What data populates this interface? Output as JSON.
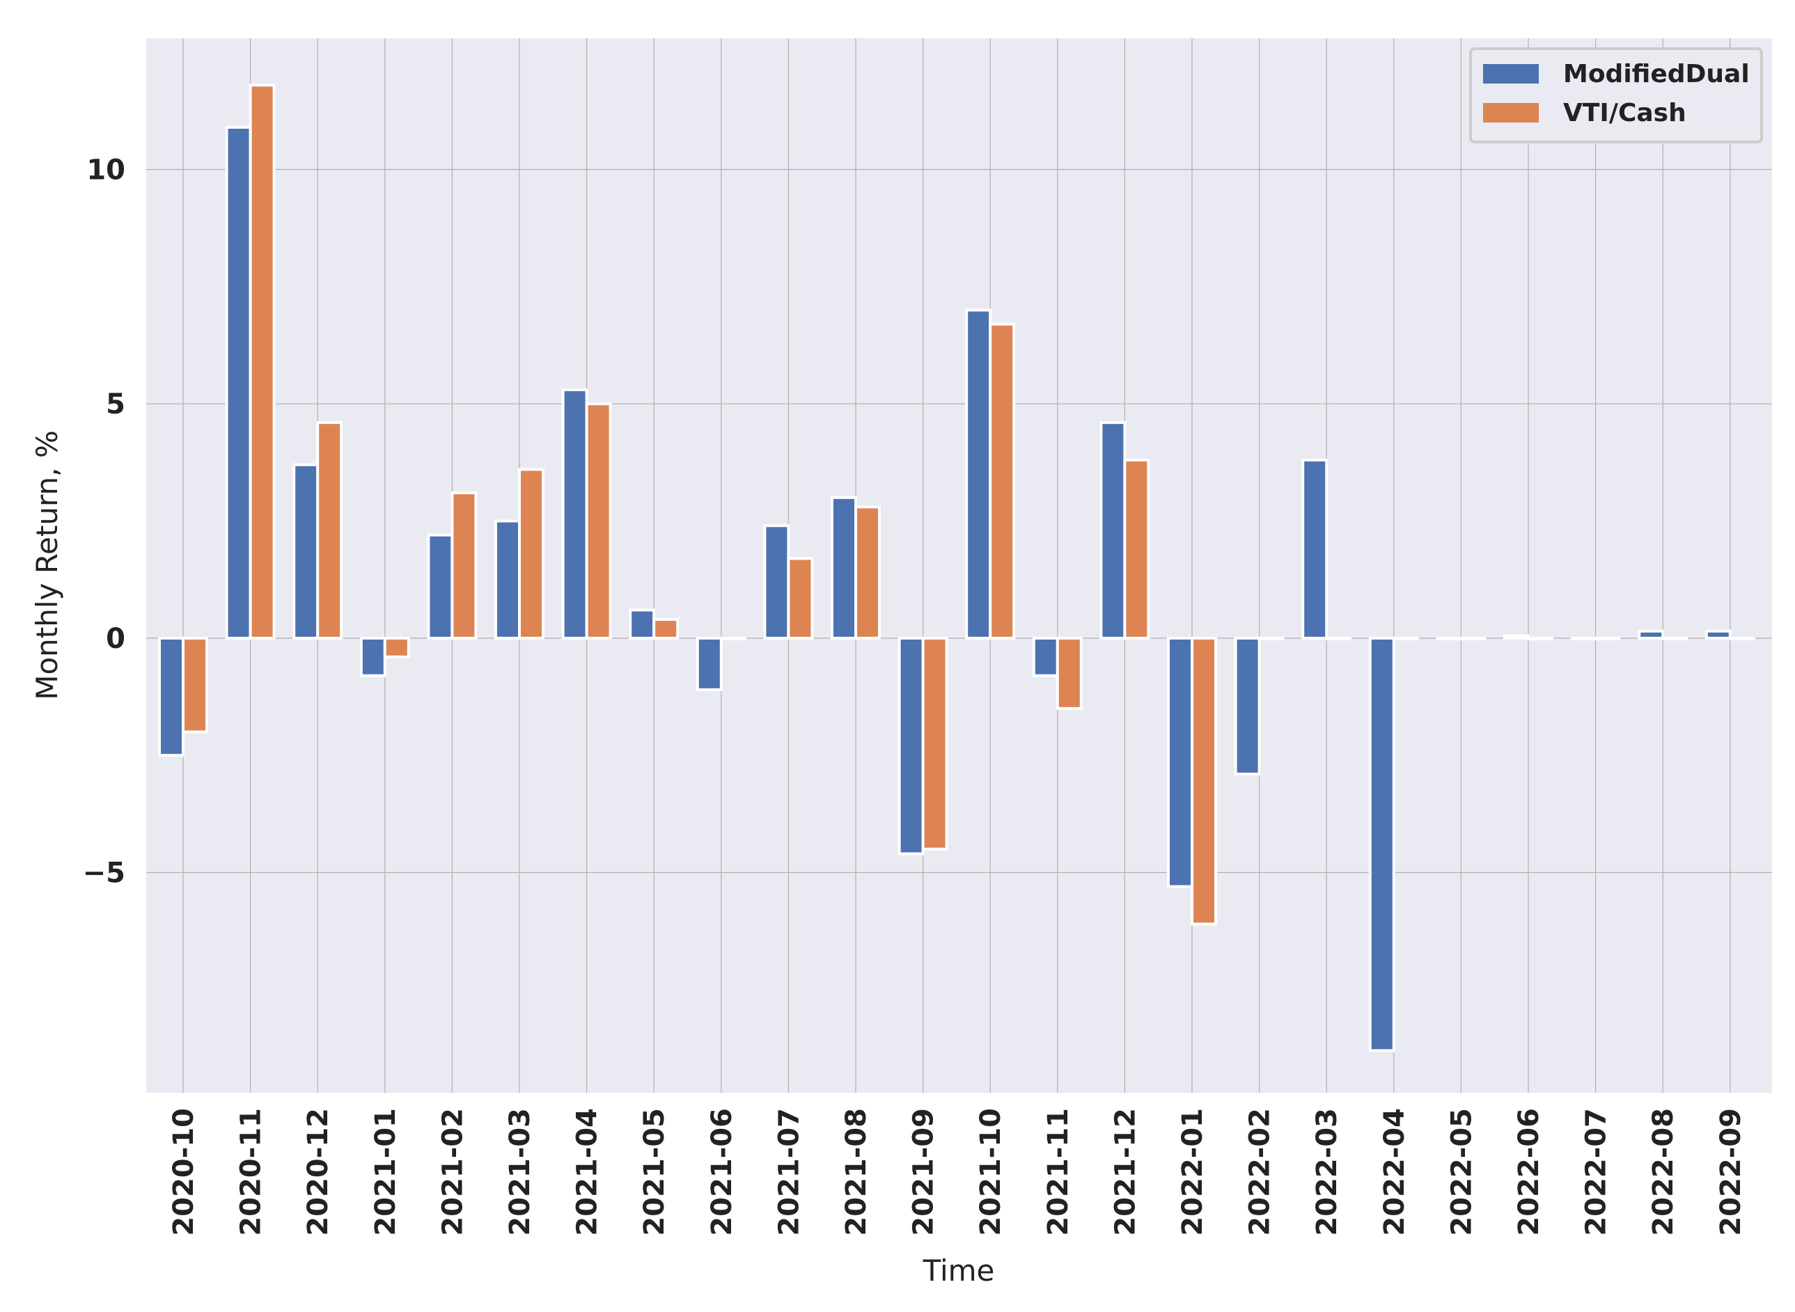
{
  "chart_data": {
    "type": "bar",
    "xlabel": "Time",
    "ylabel": "Monthly Return, %",
    "ylim": [
      -9.7,
      12.8
    ],
    "yticks": [
      -5,
      0,
      5,
      10
    ],
    "ytick_labels": [
      "−5",
      "0",
      "5",
      "10"
    ],
    "grid": true,
    "legend_position": "top-right",
    "categories": [
      "2020-10",
      "2020-11",
      "2020-12",
      "2021-01",
      "2021-02",
      "2021-03",
      "2021-04",
      "2021-05",
      "2021-06",
      "2021-07",
      "2021-08",
      "2021-09",
      "2021-10",
      "2021-11",
      "2021-12",
      "2022-01",
      "2022-02",
      "2022-03",
      "2022-04",
      "2022-05",
      "2022-06",
      "2022-07",
      "2022-08",
      "2022-09"
    ],
    "series": [
      {
        "name": "ModifiedDual",
        "color": "#4c72b0",
        "values": [
          -2.5,
          10.9,
          3.7,
          -0.8,
          2.2,
          2.5,
          5.3,
          0.6,
          -1.1,
          2.4,
          3.0,
          -4.6,
          7.0,
          -0.8,
          4.6,
          -5.3,
          -2.9,
          3.8,
          -8.8,
          0.0,
          0.05,
          0.0,
          0.15,
          0.15
        ]
      },
      {
        "name": "VTI/Cash",
        "color": "#dd8452",
        "values": [
          -2.0,
          11.8,
          4.6,
          -0.4,
          3.1,
          3.6,
          5.0,
          0.4,
          0.0,
          1.7,
          2.8,
          -4.5,
          6.7,
          -1.5,
          3.8,
          -6.1,
          0.0,
          0.0,
          0.0,
          0.0,
          0.0,
          0.0,
          0.0,
          0.0
        ]
      }
    ],
    "colors": {
      "background": "#eaeaf2",
      "grid": "#b0b0b0",
      "bar_edge": "#ffffff"
    }
  }
}
